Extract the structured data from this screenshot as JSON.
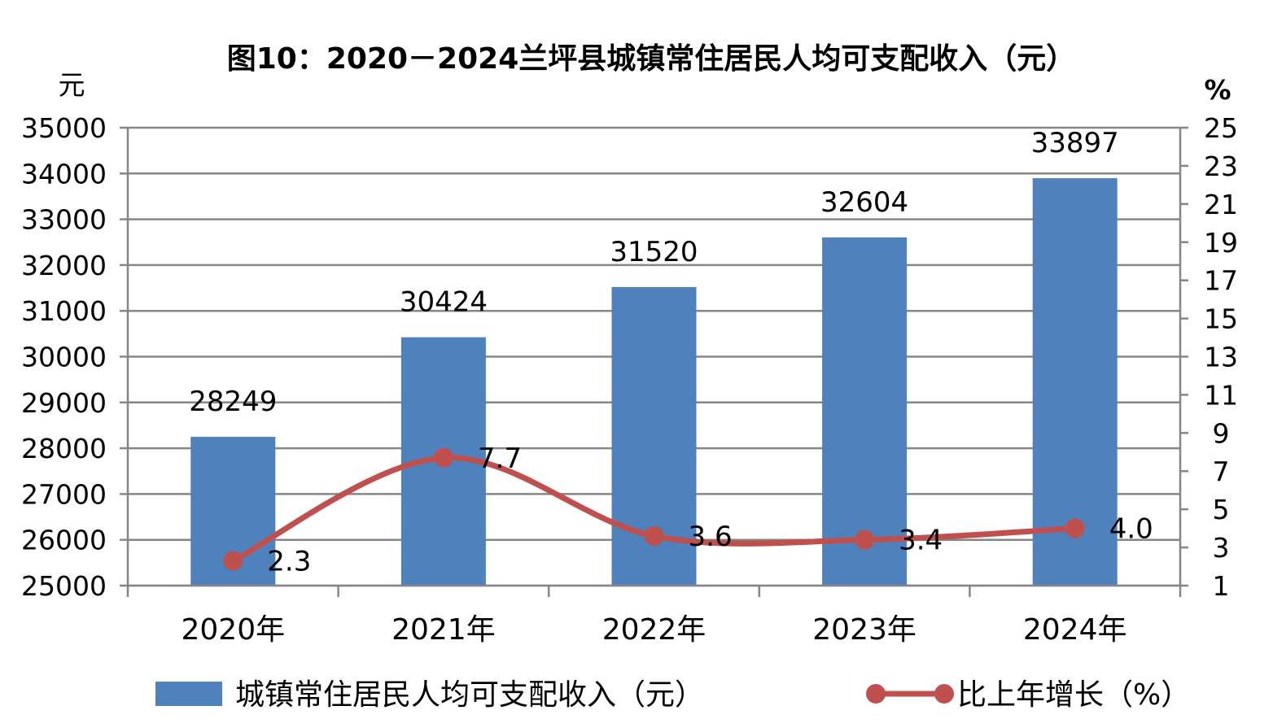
{
  "chart_data": {
    "type": "bar",
    "title": "图10：2020－2024兰坪县城镇常住居民人均可支配收入（元）",
    "categories": [
      "2020年",
      "2021年",
      "2022年",
      "2023年",
      "2024年"
    ],
    "y_left": {
      "unit": "元",
      "range": [
        25000,
        35000
      ],
      "ticks": [
        "35000",
        "34000",
        "33000",
        "32000",
        "31000",
        "30000",
        "29000",
        "28000",
        "27000",
        "26000",
        "25000"
      ]
    },
    "y_right": {
      "unit": "%",
      "range": [
        1,
        25
      ],
      "ticks": [
        "25",
        "23",
        "21",
        "19",
        "17",
        "15",
        "13",
        "11",
        "9",
        "7",
        "5",
        "3",
        "1"
      ]
    },
    "series": [
      {
        "name": "城镇常住居民人均可支配收入（元）",
        "type": "bar",
        "axis": "left",
        "color": "#4F81BD",
        "values": [
          28249,
          30424,
          31520,
          32604,
          33897
        ],
        "labels": [
          "28249",
          "30424",
          "31520",
          "32604",
          "33897"
        ]
      },
      {
        "name": "比上年增长（%）",
        "type": "line",
        "axis": "right",
        "color": "#C0504D",
        "smooth": true,
        "values": [
          2.3,
          7.7,
          3.6,
          3.4,
          4.0
        ],
        "labels": [
          "2.3",
          "7.7",
          "3.6",
          "3.4",
          "4.0"
        ]
      }
    ],
    "grid": true,
    "legend": "bottom"
  }
}
